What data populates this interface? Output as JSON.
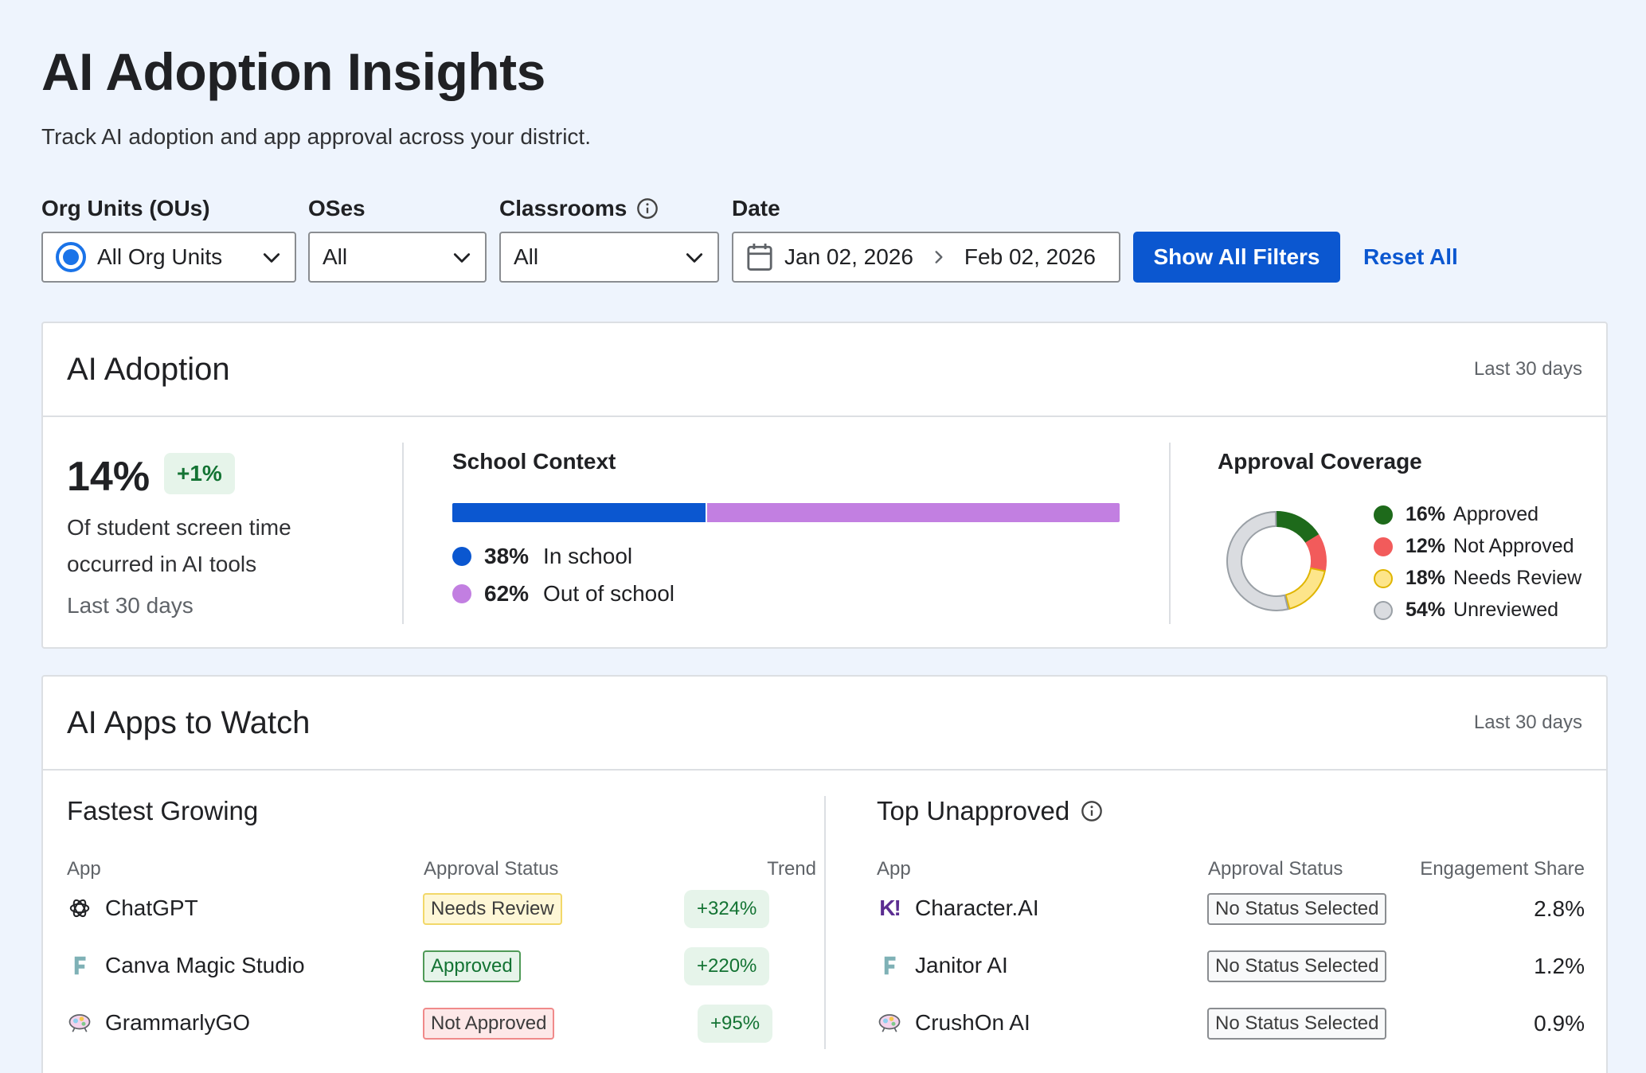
{
  "page": {
    "title": "AI Adoption Insights",
    "subtitle": "Track AI adoption and app approval across your district."
  },
  "filters": {
    "org_units": {
      "label": "Org Units (OUs)",
      "value": "All Org Units"
    },
    "oses": {
      "label": "OSes",
      "value": "All"
    },
    "classrooms": {
      "label": "Classrooms",
      "value": "All",
      "icon": "info-icon"
    },
    "date": {
      "label": "Date",
      "start": "Jan 02, 2026",
      "end": "Feb 02, 2026"
    },
    "show_all_label": "Show All Filters",
    "reset_label": "Reset All"
  },
  "adoption": {
    "title": "AI Adoption",
    "period": "Last 30 days",
    "stat": {
      "value": "14%",
      "delta": "+1%",
      "description": "Of student screen time occurred in AI tools",
      "period": "Last 30 days"
    },
    "school_context": {
      "title": "School Context",
      "segments": [
        {
          "pct": "38%",
          "label": "In school",
          "fraction": 0.38,
          "color": "#0b57d0"
        },
        {
          "pct": "62%",
          "label": "Out of school",
          "fraction": 0.62,
          "color": "#c27fe1"
        }
      ]
    },
    "approval_coverage": {
      "title": "Approval Coverage",
      "items": [
        {
          "pct": "16%",
          "label": "Approved",
          "fraction": 0.16,
          "color": "#1e6a1b",
          "border": "#1e6a1b"
        },
        {
          "pct": "12%",
          "label": "Not Approved",
          "fraction": 0.12,
          "color": "#f25b5b",
          "border": "#f25b5b"
        },
        {
          "pct": "18%",
          "label": "Needs Review",
          "fraction": 0.18,
          "color": "#fde58a",
          "border": "#e0b500"
        },
        {
          "pct": "54%",
          "label": "Unreviewed",
          "fraction": 0.54,
          "color": "#dadce0",
          "border": "#9aa0a6"
        }
      ]
    }
  },
  "apps": {
    "title": "AI Apps to Watch",
    "period": "Last 30 days",
    "fastest_growing": {
      "title": "Fastest Growing",
      "columns": {
        "app": "App",
        "status": "Approval Status",
        "trend": "Trend"
      },
      "rows": [
        {
          "app": "ChatGPT",
          "icon": "chatgpt-icon",
          "status": "Needs Review",
          "status_type": "review",
          "trend": "+324%"
        },
        {
          "app": "Canva Magic Studio",
          "icon": "letter-f-icon",
          "status": "Approved",
          "status_type": "approved",
          "trend": "+220%"
        },
        {
          "app": "GrammarlyGO",
          "icon": "brain-icon",
          "status": "Not Approved",
          "status_type": "rejected",
          "trend": "+95%"
        }
      ]
    },
    "top_unapproved": {
      "title": "Top Unapproved",
      "icon": "info-icon",
      "columns": {
        "app": "App",
        "status": "Approval Status",
        "share": "Engagement Share"
      },
      "rows": [
        {
          "app": "Character.AI",
          "icon": "character-ai-icon",
          "status": "No Status Selected",
          "share": "2.8%"
        },
        {
          "app": "Janitor AI",
          "icon": "letter-f-icon",
          "status": "No Status Selected",
          "share": "1.2%"
        },
        {
          "app": "CrushOn AI",
          "icon": "brain-icon",
          "status": "No Status Selected",
          "share": "0.9%"
        }
      ]
    }
  }
}
